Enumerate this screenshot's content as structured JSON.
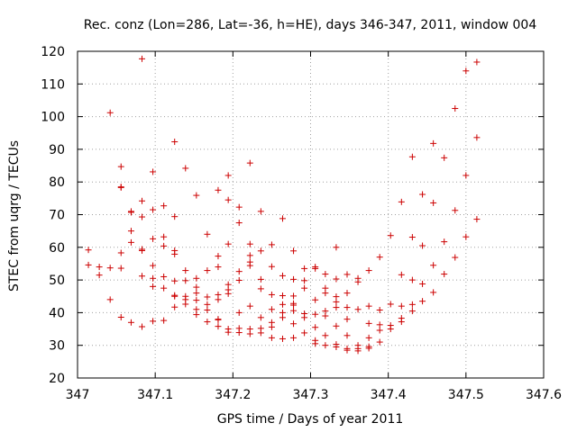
{
  "chart_data": {
    "type": "scatter",
    "title": "Rec. conz (Lon=286, Lat=-36, h=HE), days 346-347, 2011, window 004",
    "xlabel": "GPS time / Days of year 2011",
    "ylabel": "STEC from uqrg / TECUs",
    "xlim": [
      347,
      347.6
    ],
    "ylim": [
      20,
      120
    ],
    "xticks": [
      "347",
      "347.1",
      "347.2",
      "347.3",
      "347.4",
      "347.5",
      "347.6"
    ],
    "xtick_values": [
      347,
      347.1,
      347.2,
      347.3,
      347.4,
      347.5,
      347.6
    ],
    "yticks": [
      "20",
      "30",
      "40",
      "50",
      "60",
      "70",
      "80",
      "90",
      "100",
      "110",
      "120"
    ],
    "ytick_values": [
      20,
      30,
      40,
      50,
      60,
      70,
      80,
      90,
      100,
      110,
      120
    ],
    "grid": true,
    "marker": "plus",
    "color": "#cc0000",
    "points": [
      [
        347.014,
        59.2
      ],
      [
        347.014,
        54.6
      ],
      [
        347.028,
        54.0
      ],
      [
        347.028,
        51.5
      ],
      [
        347.042,
        101.2
      ],
      [
        347.042,
        53.7
      ],
      [
        347.042,
        44.0
      ],
      [
        347.056,
        84.7
      ],
      [
        347.056,
        78.5
      ],
      [
        347.056,
        78.3
      ],
      [
        347.056,
        58.3
      ],
      [
        347.056,
        53.6
      ],
      [
        347.056,
        38.6
      ],
      [
        347.069,
        71.0
      ],
      [
        347.069,
        70.7
      ],
      [
        347.069,
        65.0
      ],
      [
        347.069,
        61.5
      ],
      [
        347.069,
        37.0
      ],
      [
        347.083,
        117.7
      ],
      [
        347.083,
        74.2
      ],
      [
        347.083,
        69.3
      ],
      [
        347.083,
        59.4
      ],
      [
        347.083,
        59.0
      ],
      [
        347.083,
        51.2
      ],
      [
        347.083,
        35.7
      ],
      [
        347.097,
        83.1
      ],
      [
        347.097,
        71.5
      ],
      [
        347.097,
        62.6
      ],
      [
        347.097,
        54.4
      ],
      [
        347.097,
        50.5
      ],
      [
        347.097,
        48.0
      ],
      [
        347.097,
        37.4
      ],
      [
        347.111,
        72.7
      ],
      [
        347.111,
        63.2
      ],
      [
        347.111,
        60.4
      ],
      [
        347.111,
        51.0
      ],
      [
        347.111,
        47.5
      ],
      [
        347.111,
        37.6
      ],
      [
        347.125,
        92.3
      ],
      [
        347.125,
        69.4
      ],
      [
        347.125,
        59.0
      ],
      [
        347.125,
        57.9
      ],
      [
        347.125,
        49.7
      ],
      [
        347.125,
        45.3
      ],
      [
        347.125,
        45.0
      ],
      [
        347.125,
        41.7
      ],
      [
        347.139,
        84.2
      ],
      [
        347.139,
        52.9
      ],
      [
        347.139,
        49.8
      ],
      [
        347.139,
        45.0
      ],
      [
        347.139,
        44.0
      ],
      [
        347.139,
        42.6
      ],
      [
        347.153,
        75.9
      ],
      [
        347.153,
        50.5
      ],
      [
        347.153,
        47.8
      ],
      [
        347.153,
        46.0
      ],
      [
        347.153,
        43.8
      ],
      [
        347.153,
        41.0
      ],
      [
        347.153,
        39.4
      ],
      [
        347.167,
        64.0
      ],
      [
        347.167,
        52.9
      ],
      [
        347.167,
        44.8
      ],
      [
        347.167,
        42.5
      ],
      [
        347.167,
        40.8
      ],
      [
        347.167,
        37.2
      ],
      [
        347.181,
        77.5
      ],
      [
        347.181,
        57.3
      ],
      [
        347.181,
        54.0
      ],
      [
        347.181,
        45.5
      ],
      [
        347.181,
        44.0
      ],
      [
        347.181,
        38.0
      ],
      [
        347.181,
        37.8
      ],
      [
        347.181,
        35.8
      ],
      [
        347.194,
        82.0
      ],
      [
        347.194,
        74.5
      ],
      [
        347.194,
        61.0
      ],
      [
        347.194,
        48.6
      ],
      [
        347.194,
        47.0
      ],
      [
        347.194,
        45.8
      ],
      [
        347.194,
        35.0
      ],
      [
        347.194,
        34.0
      ],
      [
        347.208,
        72.3
      ],
      [
        347.208,
        67.5
      ],
      [
        347.208,
        52.6
      ],
      [
        347.208,
        49.9
      ],
      [
        347.208,
        40.0
      ],
      [
        347.208,
        35.2
      ],
      [
        347.208,
        33.9
      ],
      [
        347.222,
        85.8
      ],
      [
        347.222,
        61.0
      ],
      [
        347.222,
        57.5
      ],
      [
        347.222,
        55.5
      ],
      [
        347.222,
        54.4
      ],
      [
        347.222,
        42.0
      ],
      [
        347.222,
        35.0
      ],
      [
        347.222,
        33.5
      ],
      [
        347.236,
        71.0
      ],
      [
        347.236,
        58.9
      ],
      [
        347.236,
        50.2
      ],
      [
        347.236,
        47.3
      ],
      [
        347.236,
        38.5
      ],
      [
        347.236,
        35.2
      ],
      [
        347.236,
        33.8
      ],
      [
        347.25,
        60.8
      ],
      [
        347.25,
        54.1
      ],
      [
        347.25,
        45.5
      ],
      [
        347.25,
        41.0
      ],
      [
        347.25,
        37.0
      ],
      [
        347.25,
        35.6
      ],
      [
        347.25,
        32.3
      ],
      [
        347.264,
        68.8
      ],
      [
        347.264,
        51.3
      ],
      [
        347.264,
        45.2
      ],
      [
        347.264,
        42.5
      ],
      [
        347.264,
        40.0
      ],
      [
        347.264,
        38.5
      ],
      [
        347.264,
        32.0
      ],
      [
        347.278,
        58.9
      ],
      [
        347.278,
        50.2
      ],
      [
        347.278,
        45.1
      ],
      [
        347.278,
        42.8
      ],
      [
        347.278,
        42.3
      ],
      [
        347.278,
        40.6
      ],
      [
        347.278,
        36.6
      ],
      [
        347.278,
        32.3
      ],
      [
        347.292,
        53.5
      ],
      [
        347.292,
        49.8
      ],
      [
        347.292,
        47.5
      ],
      [
        347.292,
        39.7
      ],
      [
        347.292,
        38.5
      ],
      [
        347.292,
        33.8
      ],
      [
        347.306,
        54.0
      ],
      [
        347.306,
        53.5
      ],
      [
        347.306,
        43.9
      ],
      [
        347.306,
        39.5
      ],
      [
        347.306,
        35.5
      ],
      [
        347.306,
        31.5
      ],
      [
        347.306,
        30.5
      ],
      [
        347.319,
        51.8
      ],
      [
        347.319,
        47.5
      ],
      [
        347.319,
        46.0
      ],
      [
        347.319,
        40.5
      ],
      [
        347.319,
        39.0
      ],
      [
        347.319,
        33.0
      ],
      [
        347.319,
        30.0
      ],
      [
        347.333,
        60.0
      ],
      [
        347.333,
        50.3
      ],
      [
        347.333,
        44.9
      ],
      [
        347.333,
        43.3
      ],
      [
        347.333,
        41.6
      ],
      [
        347.333,
        35.9
      ],
      [
        347.333,
        30.3
      ],
      [
        347.333,
        29.5
      ],
      [
        347.347,
        51.7
      ],
      [
        347.347,
        46.0
      ],
      [
        347.347,
        41.6
      ],
      [
        347.347,
        38.0
      ],
      [
        347.347,
        33.0
      ],
      [
        347.347,
        29.0
      ],
      [
        347.347,
        28.5
      ],
      [
        347.361,
        50.5
      ],
      [
        347.361,
        49.4
      ],
      [
        347.361,
        41.0
      ],
      [
        347.361,
        30.0
      ],
      [
        347.361,
        29.0
      ],
      [
        347.361,
        28.3
      ],
      [
        347.375,
        52.9
      ],
      [
        347.375,
        42.0
      ],
      [
        347.375,
        36.7
      ],
      [
        347.375,
        32.3
      ],
      [
        347.375,
        29.6
      ],
      [
        347.375,
        29.1
      ],
      [
        347.389,
        57.0
      ],
      [
        347.389,
        40.8
      ],
      [
        347.389,
        36.3
      ],
      [
        347.389,
        34.6
      ],
      [
        347.389,
        31.0
      ],
      [
        347.403,
        63.6
      ],
      [
        347.403,
        42.6
      ],
      [
        347.403,
        36.1
      ],
      [
        347.403,
        35.0
      ],
      [
        347.417,
        73.9
      ],
      [
        347.417,
        51.6
      ],
      [
        347.417,
        42.0
      ],
      [
        347.417,
        38.3
      ],
      [
        347.417,
        37.2
      ],
      [
        347.431,
        87.7
      ],
      [
        347.431,
        63.1
      ],
      [
        347.431,
        50.0
      ],
      [
        347.431,
        42.5
      ],
      [
        347.431,
        40.5
      ],
      [
        347.444,
        76.2
      ],
      [
        347.444,
        60.5
      ],
      [
        347.444,
        48.8
      ],
      [
        347.444,
        43.5
      ],
      [
        347.458,
        91.8
      ],
      [
        347.458,
        73.6
      ],
      [
        347.458,
        54.5
      ],
      [
        347.458,
        46.2
      ],
      [
        347.472,
        87.4
      ],
      [
        347.472,
        61.7
      ],
      [
        347.472,
        51.8
      ],
      [
        347.486,
        102.5
      ],
      [
        347.486,
        71.3
      ],
      [
        347.486,
        56.9
      ],
      [
        347.5,
        114.0
      ],
      [
        347.5,
        82.0
      ],
      [
        347.5,
        63.2
      ],
      [
        347.514,
        116.7
      ],
      [
        347.514,
        93.6
      ],
      [
        347.514,
        68.6
      ]
    ]
  }
}
